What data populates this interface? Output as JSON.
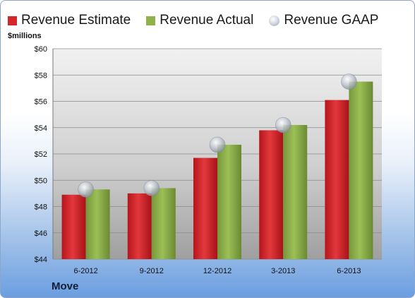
{
  "legend": {
    "estimate": "Revenue Estimate",
    "actual": "Revenue Actual",
    "gaap": "Revenue GAAP"
  },
  "y_unit": "$millions",
  "company": "Move",
  "colors": {
    "estimate": "#d6262b",
    "actual": "#8fb24a",
    "gaap": "#c9ced6"
  },
  "chart_data": {
    "type": "bar",
    "title": "",
    "xlabel": "",
    "ylabel": "$millions",
    "categories": [
      "6-2012",
      "9-2012",
      "12-2012",
      "3-2013",
      "6-2013"
    ],
    "series": [
      {
        "name": "Revenue Estimate",
        "values": [
          48.9,
          49.0,
          51.7,
          53.8,
          56.1
        ]
      },
      {
        "name": "Revenue Actual",
        "values": [
          49.3,
          49.4,
          52.7,
          54.2,
          57.5
        ]
      },
      {
        "name": "Revenue GAAP",
        "marker": "dot",
        "values": [
          49.3,
          49.4,
          52.7,
          54.2,
          57.5
        ]
      }
    ],
    "ylim": [
      44,
      60
    ],
    "yticks": [
      44,
      46,
      48,
      50,
      52,
      54,
      56,
      58,
      60
    ],
    "ytick_labels": [
      "$44",
      "$46",
      "$48",
      "$50",
      "$52",
      "$54",
      "$56",
      "$58",
      "$60"
    ],
    "grid": true,
    "legend_position": "top"
  }
}
